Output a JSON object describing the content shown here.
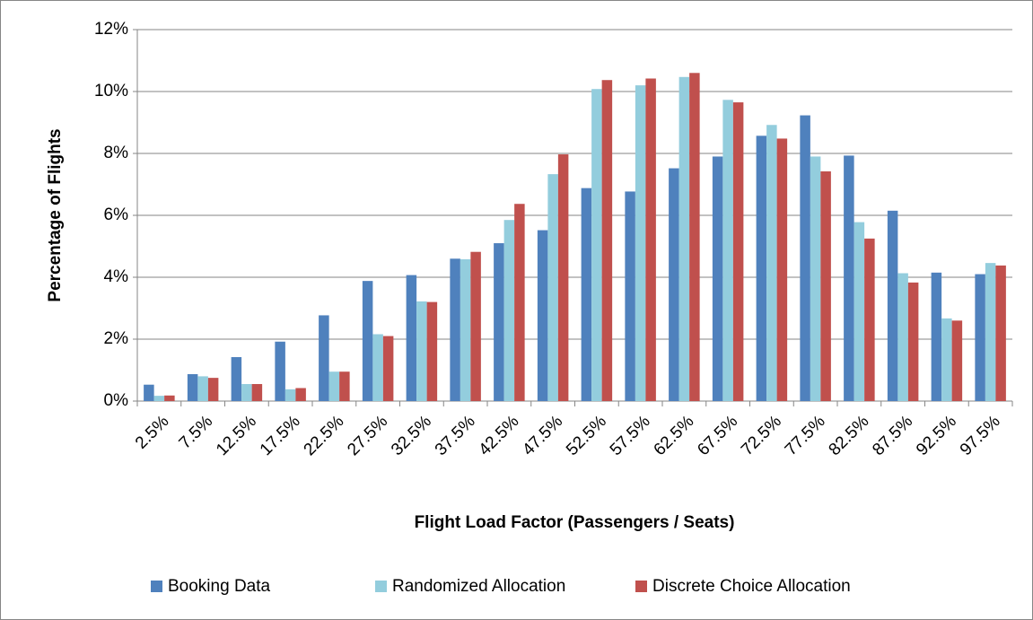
{
  "chart_data": {
    "type": "bar",
    "x_label": "Flight Load Factor (Passengers / Seats)",
    "y_label": "Percentage of Flights",
    "categories": [
      "2.5%",
      "7.5%",
      "12.5%",
      "17.5%",
      "22.5%",
      "27.5%",
      "32.5%",
      "37.5%",
      "42.5%",
      "47.5%",
      "52.5%",
      "57.5%",
      "62.5%",
      "67.5%",
      "72.5%",
      "77.5%",
      "82.5%",
      "87.5%",
      "92.5%",
      "97.5%"
    ],
    "series": [
      {
        "name": "Booking Data",
        "color": "#4f81bd",
        "values": [
          0.53,
          0.87,
          1.42,
          1.92,
          2.77,
          3.88,
          4.07,
          4.6,
          5.1,
          5.52,
          6.88,
          6.77,
          7.52,
          7.9,
          8.57,
          9.23,
          7.93,
          6.15,
          4.15,
          4.1
        ]
      },
      {
        "name": "Randomized Allocation",
        "color": "#93cddd",
        "values": [
          0.17,
          0.8,
          0.55,
          0.38,
          0.95,
          2.16,
          3.22,
          4.58,
          5.85,
          7.33,
          10.08,
          10.2,
          10.47,
          9.73,
          8.92,
          7.9,
          5.78,
          4.13,
          2.67,
          4.46
        ]
      },
      {
        "name": "Discrete Choice Allocation",
        "color": "#c0504d",
        "values": [
          0.18,
          0.75,
          0.55,
          0.42,
          0.95,
          2.1,
          3.2,
          4.82,
          6.37,
          7.97,
          10.37,
          10.42,
          10.6,
          9.65,
          8.48,
          7.42,
          5.25,
          3.83,
          2.6,
          4.38
        ]
      }
    ],
    "ylim": [
      0,
      12
    ],
    "yticks": [
      {
        "value": 0,
        "label": "0%"
      },
      {
        "value": 2,
        "label": "2%"
      },
      {
        "value": 4,
        "label": "4%"
      },
      {
        "value": 6,
        "label": "6%"
      },
      {
        "value": 8,
        "label": "8%"
      },
      {
        "value": 10,
        "label": "10%"
      },
      {
        "value": 12,
        "label": "12%"
      }
    ],
    "grid": true,
    "legend": "bottom"
  }
}
